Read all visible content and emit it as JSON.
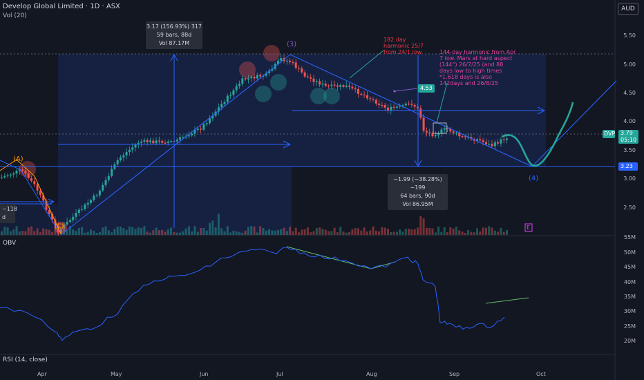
{
  "header": {
    "symbol": "Develop Global Limited · 1D · ASX",
    "volume_indicator": "Vol (20)",
    "currency_button": "AUD"
  },
  "price_axis": [
    "5.50",
    "5.00",
    "4.50",
    "4.00",
    "3.50",
    "3.00",
    "2.50"
  ],
  "obv_axis": [
    "55M",
    "50M",
    "45M",
    "40M",
    "35M",
    "30M",
    "25M",
    "20M"
  ],
  "time_axis": [
    "Apr",
    "May",
    "Jun",
    "Jul",
    "Aug",
    "Sep",
    "Oct"
  ],
  "price_badges": {
    "ticker": "DVP",
    "last_price": "3.79",
    "countdown": "05:10",
    "level_price": "3.23",
    "point_label": "4.53"
  },
  "measure_up": {
    "line1": "3.17 (156.93%) 317",
    "line2": "59 bars, 88d",
    "line3": "Vol 87.17M"
  },
  "measure_down": {
    "line1": "−1.99 (−38.28%) −199",
    "line2": "64 bars, 90d",
    "line3": "Vol 86.95M"
  },
  "wave_labels": {
    "a": "(A)",
    "c": "(C)",
    "three": "(3)",
    "four": "(4)"
  },
  "left_partial": {
    "value": "−118",
    "letter": "d"
  },
  "annotations": {
    "red": [
      "182 day",
      "harmonic 25/7",
      "from 24/1 low"
    ],
    "pink": [
      "144-day harmonic from Apr",
      "7 low. Mars at hard aspect",
      "(144°) 26/7/25 (and 88",
      "days low to high times",
      "*1.618 days is also",
      "142days and 26/8/25"
    ]
  },
  "indicators": {
    "obv": "OBV",
    "rsi": "RSI (14, close)",
    "event_marker": "E"
  },
  "colors": {
    "background": "#131722",
    "up_candle": "#26a69a",
    "down_candle": "#ef5350",
    "drawing_blue": "#2962ff",
    "projection": "#26a69a",
    "obv_line": "#2962ff"
  }
}
